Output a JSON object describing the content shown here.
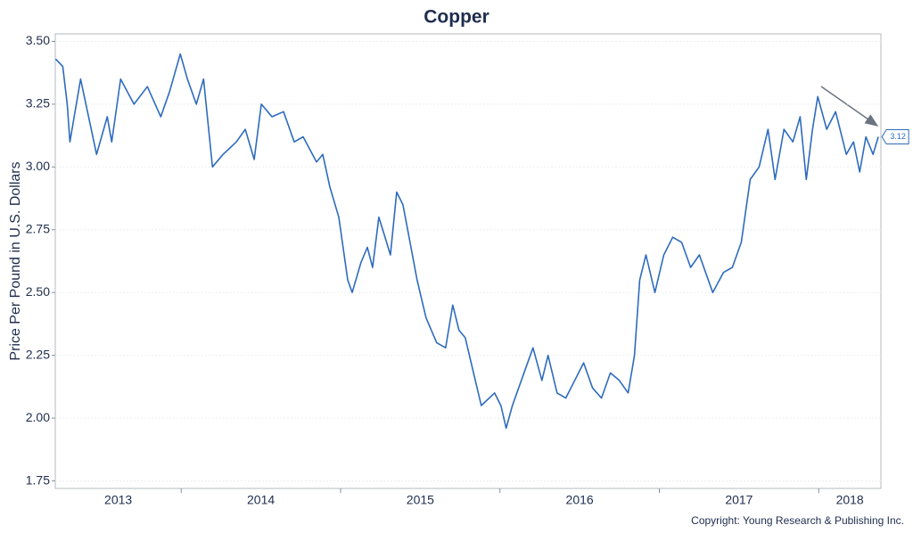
{
  "chart_data": {
    "type": "line",
    "title": "Copper",
    "y_label": "Price Per Pound in U.S. Dollars",
    "copyright": "Copyright: Young Research & Publishing Inc.",
    "color": "#2e6bbd",
    "grid": true,
    "xlim": [
      2013.21,
      2018.39
    ],
    "xticks": [
      2014,
      2015,
      2016,
      2017,
      2018
    ],
    "year_labels": [
      2013,
      2014,
      2015,
      2016,
      2017,
      2018
    ],
    "ylim": [
      1.72,
      3.53
    ],
    "yticks": [
      {
        "value": 1.75,
        "label": "1.75"
      },
      {
        "value": 2,
        "label": "2.00"
      },
      {
        "value": 2.25,
        "label": "2.25"
      },
      {
        "value": 2.5,
        "label": "2.50"
      },
      {
        "value": 2.75,
        "label": "2.75"
      },
      {
        "value": 3,
        "label": "3.00"
      },
      {
        "value": 3.25,
        "label": "3.25"
      },
      {
        "value": 3.5,
        "label": "3.50"
      }
    ],
    "x": [
      2013.212,
      2013.257,
      2013.285,
      2013.302,
      2013.369,
      2013.469,
      2013.536,
      2013.564,
      2013.62,
      2013.704,
      2013.788,
      2013.872,
      2013.927,
      2013.994,
      2014.039,
      2014.095,
      2014.14,
      2014.196,
      2014.263,
      2014.346,
      2014.402,
      2014.458,
      2014.503,
      2014.57,
      2014.642,
      2014.709,
      2014.765,
      2014.849,
      2014.888,
      2014.933,
      2014.989,
      2015.045,
      2015.073,
      2015.128,
      2015.168,
      2015.201,
      2015.24,
      2015.279,
      2015.313,
      2015.352,
      2015.391,
      2015.436,
      2015.48,
      2015.536,
      2015.603,
      2015.659,
      2015.704,
      2015.743,
      2015.782,
      2015.827,
      2015.883,
      2015.966,
      2016.006,
      2016.039,
      2016.078,
      2016.162,
      2016.207,
      2016.263,
      2016.302,
      2016.358,
      2016.413,
      2016.469,
      2016.525,
      2016.581,
      2016.637,
      2016.693,
      2016.749,
      2016.804,
      2016.844,
      2016.877,
      2016.916,
      2016.972,
      2017.028,
      2017.084,
      2017.14,
      2017.196,
      2017.251,
      2017.335,
      2017.402,
      2017.458,
      2017.514,
      2017.57,
      2017.626,
      2017.682,
      2017.726,
      2017.782,
      2017.838,
      2017.883,
      2017.922,
      2017.961,
      2017.994,
      2018.05,
      2018.106,
      2018.173,
      2018.218,
      2018.257,
      2018.296,
      2018.341,
      2018.374
    ],
    "values": [
      3.43,
      3.4,
      3.25,
      3.1,
      3.35,
      3.05,
      3.2,
      3.1,
      3.35,
      3.25,
      3.32,
      3.2,
      3.3,
      3.45,
      3.35,
      3.25,
      3.35,
      3.0,
      3.05,
      3.1,
      3.15,
      3.03,
      3.25,
      3.2,
      3.22,
      3.1,
      3.12,
      3.02,
      3.05,
      2.92,
      2.8,
      2.55,
      2.5,
      2.62,
      2.68,
      2.6,
      2.8,
      2.72,
      2.65,
      2.9,
      2.85,
      2.7,
      2.55,
      2.4,
      2.3,
      2.28,
      2.45,
      2.35,
      2.32,
      2.2,
      2.05,
      2.1,
      2.05,
      1.96,
      2.05,
      2.2,
      2.28,
      2.15,
      2.25,
      2.1,
      2.08,
      2.15,
      2.22,
      2.12,
      2.08,
      2.18,
      2.15,
      2.1,
      2.25,
      2.55,
      2.65,
      2.5,
      2.65,
      2.72,
      2.7,
      2.6,
      2.65,
      2.5,
      2.58,
      2.6,
      2.7,
      2.95,
      3.0,
      3.15,
      2.95,
      3.15,
      3.1,
      3.2,
      2.95,
      3.15,
      3.28,
      3.15,
      3.22,
      3.05,
      3.1,
      2.98,
      3.12,
      3.05,
      3.12
    ]
  }
}
